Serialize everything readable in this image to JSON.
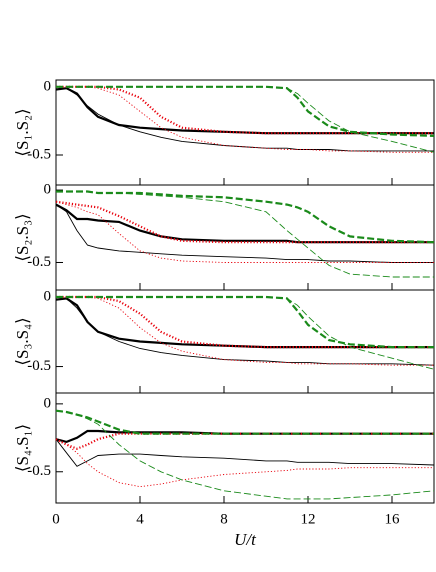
{
  "chart_data": [
    {
      "type": "line",
      "ylabel": "⟨S₁.S₂⟩",
      "x": [
        0,
        0.5,
        1,
        1.5,
        2,
        3,
        4,
        5,
        6,
        8,
        10,
        11,
        11.5,
        12,
        13,
        14,
        16,
        18
      ],
      "xlim": [
        0,
        18
      ],
      "xticks": [
        0,
        4,
        8,
        12,
        16
      ],
      "ylim": [
        -0.72,
        0.05
      ],
      "yticks": [
        0,
        -0.5
      ],
      "series": [
        {
          "color": "#000000",
          "style": "solid",
          "linewidth": 2.2,
          "values": [
            -0.02,
            -0.01,
            -0.05,
            -0.15,
            -0.22,
            -0.28,
            -0.3,
            -0.31,
            -0.32,
            -0.33,
            -0.34,
            -0.34,
            -0.34,
            -0.34,
            -0.34,
            -0.34,
            -0.34,
            -0.34
          ]
        },
        {
          "color": "#000000",
          "style": "solid",
          "linewidth": 0.9,
          "values": [
            -0.02,
            -0.01,
            -0.06,
            -0.14,
            -0.2,
            -0.28,
            -0.33,
            -0.37,
            -0.4,
            -0.43,
            -0.45,
            -0.45,
            -0.46,
            -0.46,
            -0.46,
            -0.47,
            -0.47,
            -0.47
          ]
        },
        {
          "color": "#e8000b",
          "style": "dotted",
          "linewidth": 2.2,
          "values": [
            0,
            0,
            0,
            0,
            0,
            -0.02,
            -0.08,
            -0.22,
            -0.3,
            -0.33,
            -0.34,
            -0.34,
            -0.34,
            -0.34,
            -0.34,
            -0.34,
            -0.34,
            -0.34
          ]
        },
        {
          "color": "#e8000b",
          "style": "dotted",
          "linewidth": 0.9,
          "values": [
            0,
            0,
            0,
            0,
            -0.01,
            -0.06,
            -0.18,
            -0.3,
            -0.37,
            -0.43,
            -0.45,
            -0.46,
            -0.46,
            -0.46,
            -0.47,
            -0.47,
            -0.48,
            -0.48
          ]
        },
        {
          "color": "#1a8a1a",
          "style": "dashed",
          "linewidth": 2.2,
          "values": [
            0,
            0,
            0,
            0,
            0,
            0,
            0,
            0,
            0,
            0,
            0,
            -0.01,
            -0.08,
            -0.18,
            -0.29,
            -0.33,
            -0.35,
            -0.36
          ]
        },
        {
          "color": "#1a8a1a",
          "style": "dashed",
          "linewidth": 0.9,
          "values": [
            0,
            0,
            0,
            0,
            0,
            0,
            0,
            0,
            0,
            0,
            0,
            -0.01,
            -0.05,
            -0.12,
            -0.25,
            -0.33,
            -0.4,
            -0.48
          ]
        }
      ]
    },
    {
      "type": "line",
      "ylabel": "⟨S₂.S₃⟩",
      "x": [
        0,
        0.5,
        1,
        1.5,
        2,
        3,
        4,
        5,
        6,
        8,
        10,
        11,
        11.5,
        12,
        13,
        14,
        16,
        18
      ],
      "xlim": [
        0,
        18
      ],
      "xticks": [
        0,
        4,
        8,
        12,
        16
      ],
      "ylim": [
        -0.69,
        0.035
      ],
      "yticks": [
        0,
        -0.5
      ],
      "series": [
        {
          "color": "#000000",
          "style": "solid",
          "linewidth": 2.2,
          "values": [
            -0.1,
            -0.14,
            -0.2,
            -0.2,
            -0.21,
            -0.22,
            -0.28,
            -0.32,
            -0.34,
            -0.35,
            -0.35,
            -0.35,
            -0.36,
            -0.36,
            -0.36,
            -0.36,
            -0.36,
            -0.36
          ]
        },
        {
          "color": "#000000",
          "style": "solid",
          "linewidth": 0.9,
          "values": [
            -0.1,
            -0.15,
            -0.28,
            -0.38,
            -0.4,
            -0.42,
            -0.43,
            -0.44,
            -0.45,
            -0.46,
            -0.47,
            -0.48,
            -0.48,
            -0.48,
            -0.49,
            -0.49,
            -0.5,
            -0.5
          ]
        },
        {
          "color": "#e8000b",
          "style": "dotted",
          "linewidth": 2.2,
          "values": [
            -0.08,
            -0.09,
            -0.1,
            -0.11,
            -0.12,
            -0.18,
            -0.25,
            -0.32,
            -0.35,
            -0.36,
            -0.36,
            -0.36,
            -0.36,
            -0.36,
            -0.36,
            -0.36,
            -0.36,
            -0.36
          ]
        },
        {
          "color": "#e8000b",
          "style": "dotted",
          "linewidth": 0.9,
          "values": [
            -0.08,
            -0.1,
            -0.12,
            -0.15,
            -0.17,
            -0.3,
            -0.42,
            -0.47,
            -0.49,
            -0.5,
            -0.5,
            -0.5,
            -0.5,
            -0.5,
            -0.5,
            -0.5,
            -0.5,
            -0.5
          ]
        },
        {
          "color": "#1a8a1a",
          "style": "dashed",
          "linewidth": 2.2,
          "values": [
            -0.01,
            -0.01,
            -0.01,
            -0.01,
            -0.02,
            -0.02,
            -0.02,
            -0.03,
            -0.04,
            -0.05,
            -0.08,
            -0.1,
            -0.12,
            -0.15,
            -0.25,
            -0.32,
            -0.35,
            -0.36
          ]
        },
        {
          "color": "#1a8a1a",
          "style": "dashed",
          "linewidth": 0.9,
          "values": [
            -0.01,
            -0.01,
            -0.01,
            -0.01,
            -0.02,
            -0.02,
            -0.03,
            -0.04,
            -0.05,
            -0.08,
            -0.15,
            -0.28,
            -0.34,
            -0.4,
            -0.52,
            -0.58,
            -0.6,
            -0.6
          ]
        }
      ]
    },
    {
      "type": "line",
      "ylabel": "⟨S₃.S₄⟩",
      "x": [
        0,
        0.5,
        1,
        1.5,
        2,
        3,
        4,
        5,
        6,
        8,
        10,
        11,
        11.5,
        12,
        13,
        14,
        16,
        18
      ],
      "xlim": [
        0,
        18
      ],
      "xticks": [
        0,
        4,
        8,
        12,
        16
      ],
      "ylim": [
        -0.69,
        0.05
      ],
      "yticks": [
        0,
        -0.5
      ],
      "series": [
        {
          "color": "#000000",
          "style": "solid",
          "linewidth": 2.2,
          "values": [
            -0.02,
            -0.01,
            -0.06,
            -0.18,
            -0.25,
            -0.3,
            -0.32,
            -0.33,
            -0.34,
            -0.35,
            -0.36,
            -0.36,
            -0.36,
            -0.36,
            -0.36,
            -0.36,
            -0.36,
            -0.36
          ]
        },
        {
          "color": "#000000",
          "style": "solid",
          "linewidth": 0.9,
          "values": [
            -0.02,
            -0.01,
            -0.08,
            -0.18,
            -0.25,
            -0.32,
            -0.37,
            -0.4,
            -0.42,
            -0.45,
            -0.46,
            -0.47,
            -0.47,
            -0.47,
            -0.48,
            -0.48,
            -0.48,
            -0.49
          ]
        },
        {
          "color": "#e8000b",
          "style": "dotted",
          "linewidth": 2.2,
          "values": [
            0,
            0,
            0,
            0,
            0,
            -0.03,
            -0.12,
            -0.25,
            -0.32,
            -0.35,
            -0.36,
            -0.36,
            -0.36,
            -0.36,
            -0.36,
            -0.36,
            -0.36,
            -0.36
          ]
        },
        {
          "color": "#e8000b",
          "style": "dotted",
          "linewidth": 0.9,
          "values": [
            0,
            0,
            0,
            0,
            -0.01,
            -0.08,
            -0.22,
            -0.33,
            -0.39,
            -0.45,
            -0.47,
            -0.47,
            -0.48,
            -0.48,
            -0.48,
            -0.48,
            -0.49,
            -0.49
          ]
        },
        {
          "color": "#1a8a1a",
          "style": "dashed",
          "linewidth": 2.2,
          "values": [
            0,
            0,
            0,
            0,
            0,
            0,
            0,
            0,
            0,
            0,
            0,
            -0.01,
            -0.1,
            -0.2,
            -0.31,
            -0.34,
            -0.36,
            -0.36
          ]
        },
        {
          "color": "#1a8a1a",
          "style": "dashed",
          "linewidth": 0.9,
          "values": [
            0,
            0,
            0,
            0,
            0,
            0,
            0,
            0,
            0,
            0,
            0,
            -0.01,
            -0.06,
            -0.14,
            -0.28,
            -0.36,
            -0.44,
            -0.52
          ]
        }
      ]
    },
    {
      "type": "line",
      "ylabel": "⟨S₄.S₁⟩",
      "xlabel": "U/t",
      "x": [
        0,
        0.5,
        1,
        1.5,
        2,
        3,
        4,
        5,
        6,
        8,
        10,
        11,
        11.5,
        12,
        13,
        14,
        16,
        18
      ],
      "xlim": [
        0,
        18
      ],
      "xticks": [
        0,
        4,
        8,
        12,
        16
      ],
      "ylim": [
        -0.73,
        0.08
      ],
      "yticks": [
        0,
        -0.5
      ],
      "series": [
        {
          "color": "#000000",
          "style": "solid",
          "linewidth": 2.2,
          "values": [
            -0.26,
            -0.28,
            -0.25,
            -0.2,
            -0.2,
            -0.21,
            -0.21,
            -0.21,
            -0.21,
            -0.22,
            -0.22,
            -0.22,
            -0.22,
            -0.22,
            -0.22,
            -0.22,
            -0.22,
            -0.22
          ]
        },
        {
          "color": "#000000",
          "style": "solid",
          "linewidth": 0.9,
          "values": [
            -0.26,
            -0.36,
            -0.46,
            -0.42,
            -0.38,
            -0.37,
            -0.37,
            -0.38,
            -0.39,
            -0.4,
            -0.42,
            -0.42,
            -0.43,
            -0.43,
            -0.43,
            -0.44,
            -0.44,
            -0.45
          ]
        },
        {
          "color": "#e8000b",
          "style": "dotted",
          "linewidth": 2.2,
          "values": [
            -0.26,
            -0.3,
            -0.33,
            -0.3,
            -0.26,
            -0.22,
            -0.22,
            -0.22,
            -0.22,
            -0.22,
            -0.22,
            -0.22,
            -0.22,
            -0.22,
            -0.22,
            -0.22,
            -0.22,
            -0.22
          ]
        },
        {
          "color": "#e8000b",
          "style": "dotted",
          "linewidth": 0.9,
          "values": [
            -0.26,
            -0.3,
            -0.36,
            -0.44,
            -0.5,
            -0.58,
            -0.61,
            -0.59,
            -0.56,
            -0.52,
            -0.5,
            -0.49,
            -0.48,
            -0.48,
            -0.48,
            -0.47,
            -0.47,
            -0.47
          ]
        },
        {
          "color": "#1a8a1a",
          "style": "dashed",
          "linewidth": 2.2,
          "values": [
            -0.05,
            -0.06,
            -0.08,
            -0.1,
            -0.13,
            -0.19,
            -0.22,
            -0.22,
            -0.22,
            -0.22,
            -0.22,
            -0.22,
            -0.22,
            -0.22,
            -0.22,
            -0.22,
            -0.22,
            -0.22
          ]
        },
        {
          "color": "#1a8a1a",
          "style": "dashed",
          "linewidth": 0.9,
          "values": [
            -0.05,
            -0.06,
            -0.08,
            -0.11,
            -0.15,
            -0.3,
            -0.42,
            -0.5,
            -0.56,
            -0.64,
            -0.68,
            -0.7,
            -0.7,
            -0.7,
            -0.7,
            -0.69,
            -0.67,
            -0.64
          ]
        }
      ]
    }
  ]
}
